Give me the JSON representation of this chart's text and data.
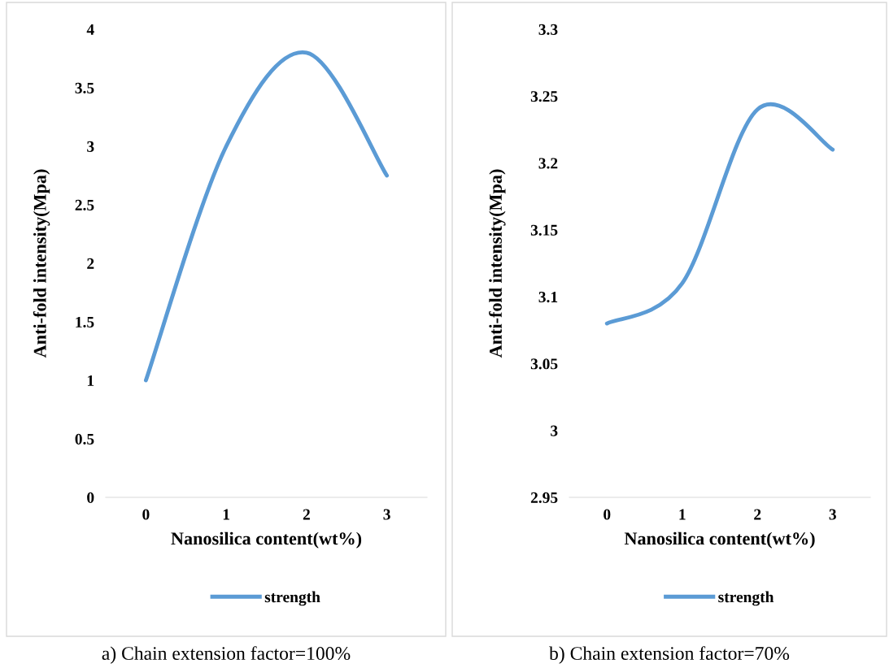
{
  "chart_data": [
    {
      "type": "line",
      "xlabel": "Nanosilica content(wt%)",
      "ylabel": "Anti-fold intensity(Mpa)",
      "categories": [
        "0",
        "1",
        "2",
        "3"
      ],
      "series": [
        {
          "name": "strength",
          "color": "#5b9bd5",
          "values": [
            1,
            3.0,
            3.8,
            2.75
          ]
        }
      ],
      "ylim": [
        0,
        4
      ],
      "yticks": [
        0,
        0.5,
        1,
        1.5,
        2,
        2.5,
        3,
        3.5,
        4
      ],
      "grid": false,
      "legend": "bottom",
      "marker": "none",
      "line_style": "solid",
      "annotations": [
        "a) Chain extension factor=100%"
      ]
    },
    {
      "type": "line",
      "xlabel": "Nanosilica content(wt%)",
      "ylabel": "Anti-fold intensity(Mpa)",
      "categories": [
        "0",
        "1",
        "2",
        "3"
      ],
      "series": [
        {
          "name": "strength",
          "color": "#5b9bd5",
          "values": [
            3.08,
            3.11,
            3.24,
            3.21
          ]
        }
      ],
      "ylim": [
        2.95,
        3.3
      ],
      "yticks": [
        2.95,
        3,
        3.05,
        3.1,
        3.15,
        3.2,
        3.25,
        3.3
      ],
      "grid": false,
      "legend": "bottom",
      "marker": "none",
      "line_style": "solid",
      "annotations": [
        "b) Chain extension factor=70%"
      ]
    }
  ]
}
